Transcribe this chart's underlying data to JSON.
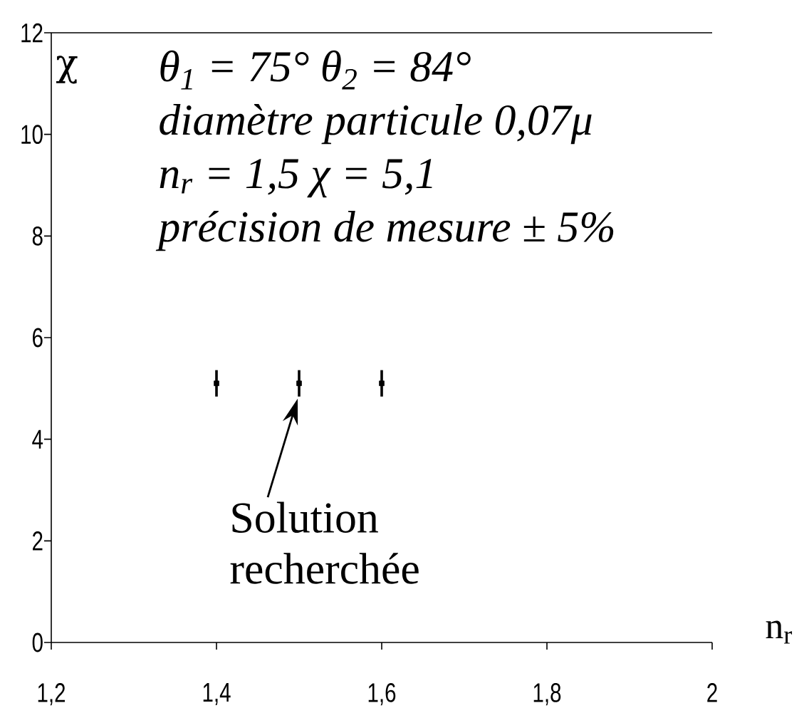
{
  "chart_data": {
    "type": "scatter",
    "xlabel": "n$_{r}$",
    "ylabel": "χ",
    "x": [
      1.4,
      1.5,
      1.6
    ],
    "values": [
      5.1,
      5.1,
      5.1
    ],
    "errors": [
      0.26,
      0.26,
      0.26
    ],
    "color": "#000000",
    "marker": "square",
    "xlim": [
      1.2,
      2
    ],
    "xticks": [
      {
        "value": 1.2,
        "label": "1,2"
      },
      {
        "value": 1.4,
        "label": "1,4"
      },
      {
        "value": 1.6,
        "label": "1,6"
      },
      {
        "value": 1.8,
        "label": "1,8"
      },
      2
    ],
    "ylim": [
      0,
      12
    ],
    "yticks": [
      0,
      2,
      4,
      6,
      8,
      10,
      12
    ],
    "annotations": [
      "θ$_{1}$ = 75°  θ$_{2}$ = 84°",
      "diamètre particule 0,07μ",
      "n$_{r}$ = 1,5   χ = 5,1",
      "précision de mesure ± 5%",
      {
        "text": "Solution recherchée",
        "x": 1.5,
        "y": 5.1
      }
    ]
  }
}
